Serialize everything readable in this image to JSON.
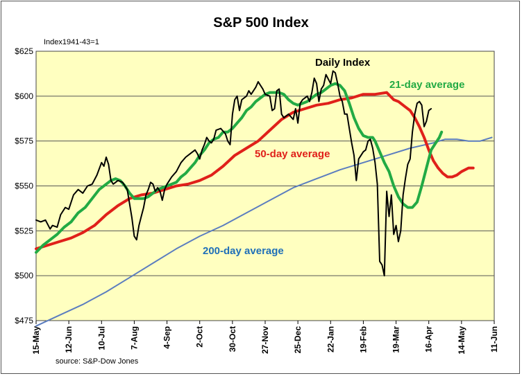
{
  "chart_data": {
    "type": "line",
    "title": "S&P 500 Index",
    "subtitle": "Index1941-43=1",
    "source": "source: S&P-Dow Jones",
    "ylim": [
      475,
      625
    ],
    "y_ticks": [
      625,
      600,
      575,
      550,
      525,
      500,
      475
    ],
    "y_tick_labels": [
      "$625",
      "$600",
      "$575",
      "$550",
      "$525",
      "$500",
      "$475"
    ],
    "x_ticks": [
      "15-May",
      "12-Jun",
      "10-Jul",
      "7-Aug",
      "4-Sep",
      "2-Oct",
      "30-Oct",
      "27-Nov",
      "25-Dec",
      "22-Jan",
      "19-Feb",
      "19-Mar",
      "16-Apr",
      "14-May",
      "11-Jun"
    ],
    "x_range_days": [
      0,
      392
    ],
    "grid": "horizontal",
    "plot_background": "#ffffc0",
    "annotations": [
      {
        "text": "Daily Index",
        "color": "#000000"
      },
      {
        "text": "21-day average",
        "color": "#22aa44"
      },
      {
        "text": "50-day average",
        "color": "#e0201a"
      },
      {
        "text": "200-day average",
        "color": "#1f6fb8"
      }
    ],
    "series": [
      {
        "name": "Daily Index",
        "color": "#000000",
        "points": [
          [
            0,
            531
          ],
          [
            4,
            530
          ],
          [
            8,
            531
          ],
          [
            12,
            526
          ],
          [
            14,
            528
          ],
          [
            18,
            527
          ],
          [
            21,
            534
          ],
          [
            25,
            538
          ],
          [
            28,
            537
          ],
          [
            32,
            545
          ],
          [
            36,
            548
          ],
          [
            40,
            546
          ],
          [
            44,
            550
          ],
          [
            48,
            551
          ],
          [
            52,
            556
          ],
          [
            56,
            563
          ],
          [
            58,
            561
          ],
          [
            60,
            566
          ],
          [
            62,
            562
          ],
          [
            64,
            553
          ],
          [
            66,
            551
          ],
          [
            70,
            553
          ],
          [
            74,
            552
          ],
          [
            78,
            548
          ],
          [
            80,
            540
          ],
          [
            82,
            532
          ],
          [
            84,
            522
          ],
          [
            86,
            520
          ],
          [
            88,
            528
          ],
          [
            90,
            533
          ],
          [
            92,
            538
          ],
          [
            94,
            545
          ],
          [
            96,
            548
          ],
          [
            98,
            552
          ],
          [
            100,
            551
          ],
          [
            102,
            547
          ],
          [
            104,
            549
          ],
          [
            106,
            547
          ],
          [
            108,
            542
          ],
          [
            110,
            548
          ],
          [
            112,
            551
          ],
          [
            116,
            555
          ],
          [
            120,
            558
          ],
          [
            124,
            563
          ],
          [
            128,
            566
          ],
          [
            132,
            568
          ],
          [
            136,
            570
          ],
          [
            138,
            568
          ],
          [
            140,
            565
          ],
          [
            142,
            570
          ],
          [
            144,
            573
          ],
          [
            146,
            577
          ],
          [
            148,
            575
          ],
          [
            150,
            574
          ],
          [
            152,
            576
          ],
          [
            154,
            581
          ],
          [
            158,
            582
          ],
          [
            162,
            579
          ],
          [
            164,
            575
          ],
          [
            166,
            573
          ],
          [
            168,
            590
          ],
          [
            170,
            598
          ],
          [
            172,
            600
          ],
          [
            174,
            592
          ],
          [
            176,
            598
          ],
          [
            180,
            600
          ],
          [
            182,
            603
          ],
          [
            184,
            601
          ],
          [
            188,
            605
          ],
          [
            190,
            608
          ],
          [
            194,
            604
          ],
          [
            196,
            601
          ],
          [
            200,
            600
          ],
          [
            202,
            592
          ],
          [
            204,
            593
          ],
          [
            206,
            603
          ],
          [
            208,
            604
          ],
          [
            210,
            590
          ],
          [
            212,
            588
          ],
          [
            216,
            590
          ],
          [
            220,
            587
          ],
          [
            222,
            593
          ],
          [
            224,
            585
          ],
          [
            226,
            596
          ],
          [
            228,
            598
          ],
          [
            232,
            600
          ],
          [
            234,
            597
          ],
          [
            236,
            602
          ],
          [
            238,
            610
          ],
          [
            240,
            607
          ],
          [
            242,
            597
          ],
          [
            244,
            604
          ],
          [
            246,
            606
          ],
          [
            248,
            612
          ],
          [
            252,
            607
          ],
          [
            254,
            614
          ],
          [
            256,
            613
          ],
          [
            258,
            607
          ],
          [
            260,
            600
          ],
          [
            262,
            597
          ],
          [
            264,
            590
          ],
          [
            266,
            590
          ],
          [
            268,
            582
          ],
          [
            270,
            574
          ],
          [
            272,
            567
          ],
          [
            274,
            553
          ],
          [
            276,
            565
          ],
          [
            280,
            569
          ],
          [
            282,
            570
          ],
          [
            284,
            575
          ],
          [
            286,
            576
          ],
          [
            288,
            571
          ],
          [
            290,
            563
          ],
          [
            292,
            551
          ],
          [
            294,
            508
          ],
          [
            296,
            506
          ],
          [
            298,
            500
          ],
          [
            300,
            547
          ],
          [
            302,
            533
          ],
          [
            304,
            545
          ],
          [
            306,
            523
          ],
          [
            308,
            528
          ],
          [
            310,
            519
          ],
          [
            312,
            525
          ],
          [
            314,
            545
          ],
          [
            316,
            554
          ],
          [
            318,
            562
          ],
          [
            320,
            565
          ],
          [
            322,
            580
          ],
          [
            324,
            590
          ],
          [
            326,
            596
          ],
          [
            328,
            597
          ],
          [
            330,
            595
          ],
          [
            332,
            583
          ],
          [
            334,
            586
          ],
          [
            336,
            592
          ],
          [
            338,
            593
          ]
        ]
      },
      {
        "name": "21-day average",
        "color": "#22aa44",
        "points": [
          [
            0,
            513
          ],
          [
            6,
            517
          ],
          [
            12,
            520
          ],
          [
            18,
            523
          ],
          [
            24,
            527
          ],
          [
            30,
            530
          ],
          [
            36,
            535
          ],
          [
            42,
            538
          ],
          [
            48,
            543
          ],
          [
            54,
            548
          ],
          [
            60,
            551
          ],
          [
            64,
            553
          ],
          [
            68,
            554
          ],
          [
            72,
            553
          ],
          [
            76,
            550
          ],
          [
            80,
            546
          ],
          [
            84,
            543
          ],
          [
            88,
            543
          ],
          [
            92,
            543
          ],
          [
            96,
            544
          ],
          [
            100,
            546
          ],
          [
            104,
            548
          ],
          [
            108,
            549
          ],
          [
            112,
            550
          ],
          [
            116,
            551
          ],
          [
            120,
            552
          ],
          [
            124,
            555
          ],
          [
            128,
            557
          ],
          [
            132,
            560
          ],
          [
            136,
            563
          ],
          [
            140,
            567
          ],
          [
            144,
            570
          ],
          [
            148,
            574
          ],
          [
            152,
            576
          ],
          [
            156,
            577
          ],
          [
            160,
            580
          ],
          [
            164,
            580
          ],
          [
            168,
            582
          ],
          [
            172,
            585
          ],
          [
            176,
            588
          ],
          [
            180,
            592
          ],
          [
            184,
            594
          ],
          [
            188,
            597
          ],
          [
            192,
            599
          ],
          [
            196,
            601
          ],
          [
            200,
            602
          ],
          [
            204,
            602
          ],
          [
            208,
            602
          ],
          [
            212,
            601
          ],
          [
            216,
            598
          ],
          [
            220,
            596
          ],
          [
            224,
            595
          ],
          [
            228,
            596
          ],
          [
            232,
            597
          ],
          [
            236,
            599
          ],
          [
            240,
            601
          ],
          [
            244,
            602
          ],
          [
            248,
            604
          ],
          [
            252,
            606
          ],
          [
            256,
            607
          ],
          [
            260,
            606
          ],
          [
            264,
            603
          ],
          [
            268,
            596
          ],
          [
            272,
            588
          ],
          [
            276,
            582
          ],
          [
            280,
            578
          ],
          [
            284,
            577
          ],
          [
            288,
            577
          ],
          [
            290,
            575
          ],
          [
            294,
            569
          ],
          [
            298,
            563
          ],
          [
            302,
            558
          ],
          [
            306,
            550
          ],
          [
            310,
            544
          ],
          [
            314,
            540
          ],
          [
            318,
            538
          ],
          [
            322,
            538
          ],
          [
            326,
            541
          ],
          [
            330,
            550
          ],
          [
            334,
            560
          ],
          [
            338,
            570
          ],
          [
            342,
            574
          ],
          [
            345,
            577
          ],
          [
            347,
            580
          ]
        ]
      },
      {
        "name": "50-day average",
        "color": "#e0201a",
        "points": [
          [
            0,
            515
          ],
          [
            10,
            517
          ],
          [
            20,
            519
          ],
          [
            30,
            521
          ],
          [
            40,
            524
          ],
          [
            50,
            528
          ],
          [
            60,
            534
          ],
          [
            70,
            539
          ],
          [
            80,
            543
          ],
          [
            90,
            545
          ],
          [
            100,
            546
          ],
          [
            110,
            548
          ],
          [
            120,
            550
          ],
          [
            130,
            551
          ],
          [
            140,
            553
          ],
          [
            150,
            556
          ],
          [
            160,
            561
          ],
          [
            170,
            567
          ],
          [
            180,
            571
          ],
          [
            190,
            575
          ],
          [
            200,
            581
          ],
          [
            210,
            587
          ],
          [
            220,
            591
          ],
          [
            230,
            593
          ],
          [
            240,
            595
          ],
          [
            250,
            596
          ],
          [
            260,
            598
          ],
          [
            270,
            599
          ],
          [
            280,
            601
          ],
          [
            290,
            601
          ],
          [
            300,
            602
          ],
          [
            306,
            598
          ],
          [
            310,
            597
          ],
          [
            316,
            594
          ],
          [
            320,
            592
          ],
          [
            324,
            588
          ],
          [
            328,
            583
          ],
          [
            332,
            577
          ],
          [
            336,
            570
          ],
          [
            340,
            564
          ],
          [
            344,
            560
          ],
          [
            348,
            557
          ],
          [
            352,
            555
          ],
          [
            356,
            555
          ],
          [
            360,
            556
          ],
          [
            364,
            558
          ],
          [
            370,
            560
          ],
          [
            374,
            560
          ]
        ]
      },
      {
        "name": "200-day average",
        "color": "#5b7dbf",
        "points": [
          [
            0,
            472
          ],
          [
            20,
            478
          ],
          [
            40,
            484
          ],
          [
            60,
            491
          ],
          [
            80,
            499
          ],
          [
            100,
            507
          ],
          [
            120,
            515
          ],
          [
            140,
            522
          ],
          [
            160,
            528
          ],
          [
            180,
            535
          ],
          [
            200,
            542
          ],
          [
            220,
            549
          ],
          [
            240,
            554
          ],
          [
            260,
            559
          ],
          [
            280,
            563
          ],
          [
            300,
            567
          ],
          [
            320,
            571
          ],
          [
            340,
            574
          ],
          [
            350,
            576
          ],
          [
            360,
            576
          ],
          [
            370,
            575
          ],
          [
            380,
            575
          ],
          [
            390,
            577
          ]
        ]
      }
    ]
  }
}
